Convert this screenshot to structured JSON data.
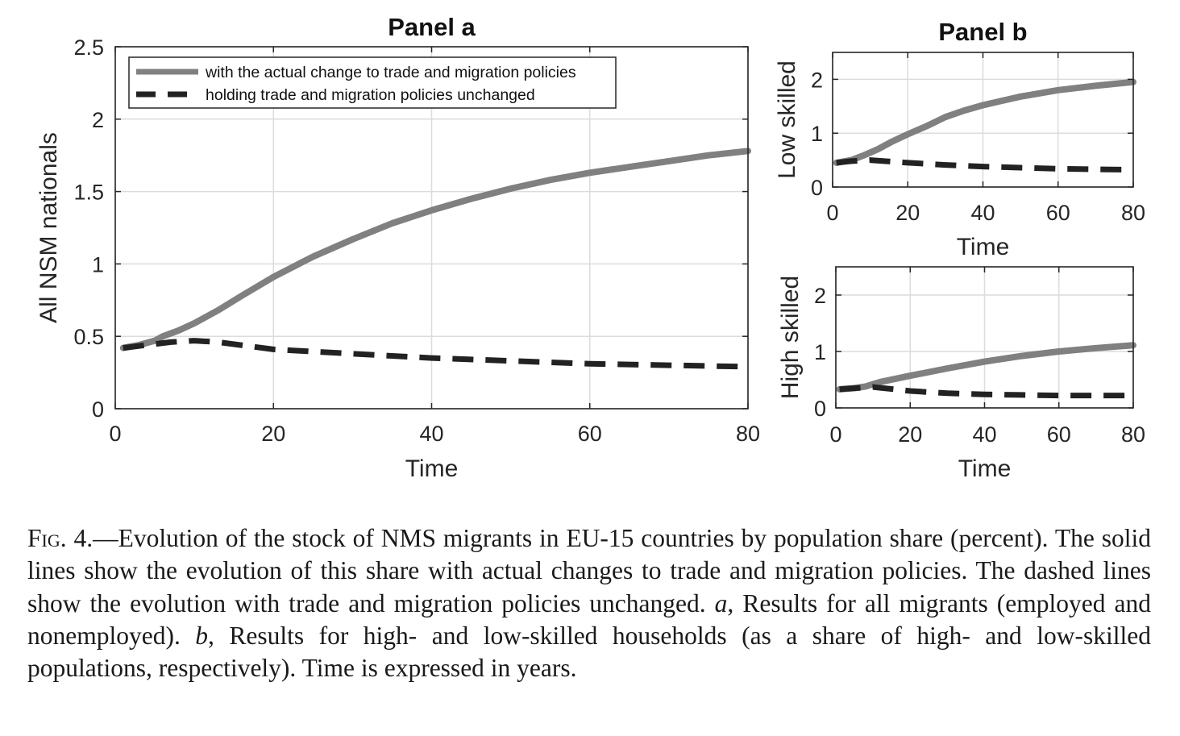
{
  "chart_data": [
    {
      "type": "line",
      "title": "Panel a",
      "xlabel": "Time",
      "ylabel": "All NSM nationals",
      "xlim": [
        0,
        80
      ],
      "ylim": [
        0,
        2.5
      ],
      "xticks": [
        "0",
        "20",
        "40",
        "60",
        "80"
      ],
      "yticks": [
        "0",
        "0.5",
        "1",
        "1.5",
        "2",
        "2.5"
      ],
      "grid": true,
      "legend_position": "top-left",
      "series": [
        {
          "name": "with the actual change to trade and migration policies",
          "style": "solid",
          "color": "#808080",
          "x": [
            1,
            3,
            5,
            6,
            8,
            10,
            13,
            16,
            20,
            25,
            30,
            35,
            40,
            45,
            50,
            55,
            60,
            65,
            70,
            75,
            80
          ],
          "y": [
            0.42,
            0.44,
            0.47,
            0.5,
            0.54,
            0.59,
            0.68,
            0.78,
            0.91,
            1.05,
            1.17,
            1.28,
            1.37,
            1.45,
            1.52,
            1.58,
            1.63,
            1.67,
            1.71,
            1.75,
            1.78
          ]
        },
        {
          "name": "holding trade and migration policies unchanged",
          "style": "dashed",
          "color": "#222222",
          "x": [
            1,
            4,
            7,
            10,
            13,
            20,
            30,
            40,
            50,
            60,
            70,
            80
          ],
          "y": [
            0.42,
            0.44,
            0.46,
            0.47,
            0.46,
            0.41,
            0.38,
            0.35,
            0.33,
            0.31,
            0.3,
            0.29
          ]
        }
      ]
    },
    {
      "type": "line",
      "title": "Panel b",
      "xlabel": "Time",
      "ylabel": "Low skilled",
      "xlim": [
        0,
        80
      ],
      "ylim": [
        0,
        2.5
      ],
      "xticks": [
        "0",
        "20",
        "40",
        "60",
        "80"
      ],
      "yticks": [
        "0",
        "1",
        "2"
      ],
      "grid": true,
      "series": [
        {
          "name": "",
          "style": "solid",
          "color": "#808080",
          "x": [
            1,
            5,
            8,
            12,
            16,
            20,
            25,
            30,
            35,
            40,
            45,
            50,
            60,
            70,
            80
          ],
          "y": [
            0.45,
            0.5,
            0.58,
            0.7,
            0.85,
            0.98,
            1.13,
            1.3,
            1.42,
            1.52,
            1.6,
            1.68,
            1.8,
            1.88,
            1.95
          ]
        },
        {
          "name": "",
          "style": "dashed",
          "color": "#222222",
          "x": [
            1,
            5,
            10,
            20,
            30,
            40,
            50,
            60,
            70,
            80
          ],
          "y": [
            0.45,
            0.48,
            0.5,
            0.45,
            0.41,
            0.38,
            0.36,
            0.34,
            0.33,
            0.32
          ]
        }
      ]
    },
    {
      "type": "line",
      "title": "",
      "xlabel": "Time",
      "ylabel": "High skilled",
      "xlim": [
        0,
        80
      ],
      "ylim": [
        0,
        2.5
      ],
      "xticks": [
        "0",
        "20",
        "40",
        "60",
        "80"
      ],
      "yticks": [
        "0",
        "1",
        "2"
      ],
      "grid": true,
      "series": [
        {
          "name": "",
          "style": "solid",
          "color": "#808080",
          "x": [
            1,
            5,
            8,
            10,
            12,
            20,
            30,
            40,
            50,
            60,
            70,
            80
          ],
          "y": [
            0.33,
            0.35,
            0.38,
            0.42,
            0.46,
            0.57,
            0.7,
            0.82,
            0.92,
            1.0,
            1.06,
            1.11
          ]
        },
        {
          "name": "",
          "style": "dashed",
          "color": "#222222",
          "x": [
            1,
            5,
            8,
            10,
            20,
            30,
            40,
            50,
            60,
            70,
            80
          ],
          "y": [
            0.33,
            0.35,
            0.36,
            0.37,
            0.3,
            0.26,
            0.24,
            0.23,
            0.22,
            0.22,
            0.22
          ]
        }
      ]
    }
  ],
  "caption": {
    "fig_label": "Fig. 4.",
    "text_1": "—Evolution of the stock of NMS migrants in EU-15 countries by population share (percent). The solid lines show the evolution of this share with actual changes to trade and migration policies. The dashed lines show the evolution with trade and migration policies unchanged. ",
    "a_label": "a",
    "text_2": ", Results for all migrants (employed and nonemployed). ",
    "b_label": "b",
    "text_3": ", Results for high- and low-skilled households (as a share of high- and low-skilled populations, respectively). Time is expressed in years."
  }
}
